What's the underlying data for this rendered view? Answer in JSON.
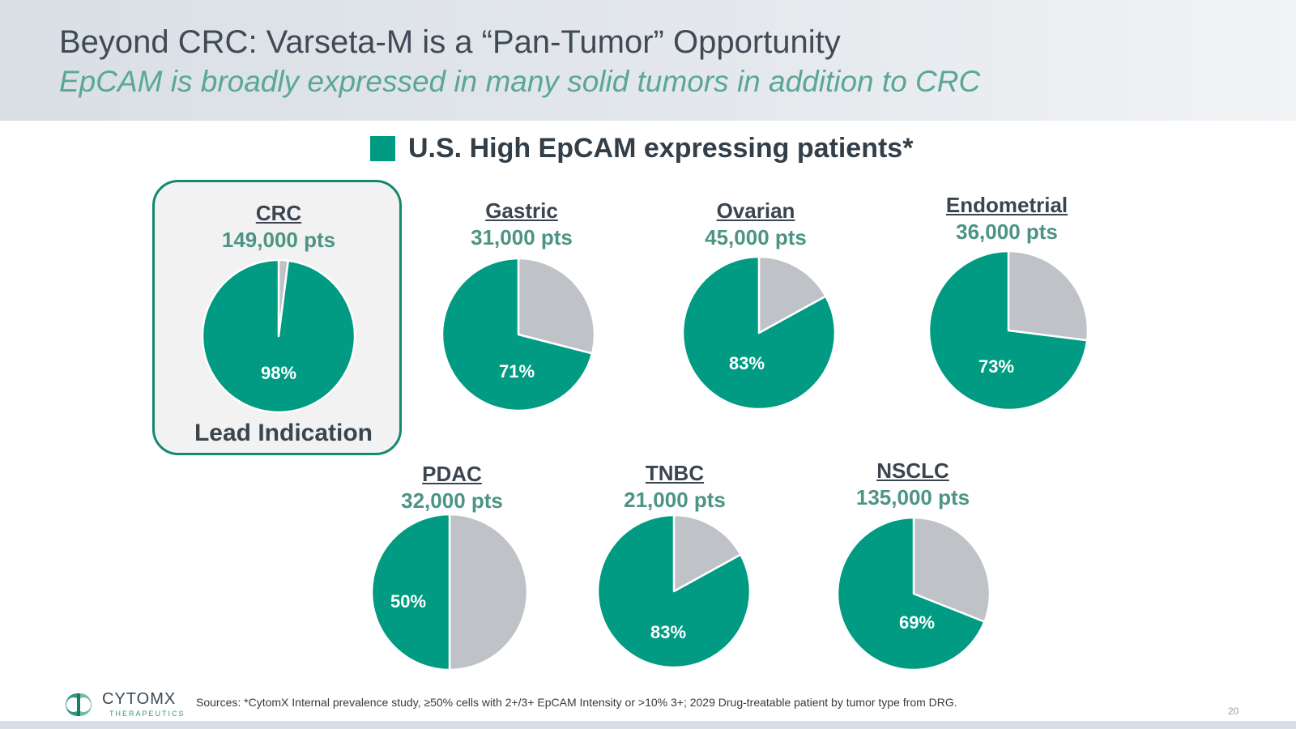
{
  "header": {
    "title": "Beyond CRC: Varseta-M is a “Pan-Tumor” Opportunity",
    "subtitle": "EpCAM is broadly expressed in many solid tumors in addition to CRC"
  },
  "colors": {
    "high_epcam": "#009b82",
    "other": "#bfc2c6",
    "header_title": "#3e4a56",
    "subtitle": "#5aa796"
  },
  "lead_box": {
    "label": "Lead Indication",
    "indication": "CRC"
  },
  "chart_data": {
    "type": "pie",
    "legend": {
      "label": "U.S. High EpCAM expressing patients*",
      "placement": "top"
    },
    "series_name": "U.S. High EpCAM expressing patients*",
    "pies": [
      {
        "name": "CRC",
        "pts_label": "149,000 pts",
        "patients": 149000,
        "high_epcam_pct": 98,
        "pct_label": "98%"
      },
      {
        "name": "Gastric",
        "pts_label": "31,000 pts",
        "patients": 31000,
        "high_epcam_pct": 71,
        "pct_label": "71%"
      },
      {
        "name": "Ovarian",
        "pts_label": "45,000 pts",
        "patients": 45000,
        "high_epcam_pct": 83,
        "pct_label": "83%"
      },
      {
        "name": "Endometrial",
        "pts_label": "36,000 pts",
        "patients": 36000,
        "high_epcam_pct": 73,
        "pct_label": "73%"
      },
      {
        "name": "PDAC",
        "pts_label": "32,000 pts",
        "patients": 32000,
        "high_epcam_pct": 50,
        "pct_label": "50%"
      },
      {
        "name": "TNBC",
        "pts_label": "21,000 pts",
        "patients": 21000,
        "high_epcam_pct": 83,
        "pct_label": "83%"
      },
      {
        "name": "NSCLC",
        "pts_label": "135,000 pts",
        "patients": 135000,
        "high_epcam_pct": 69,
        "pct_label": "69%"
      }
    ]
  },
  "footer": {
    "logo_word": "CYTOMX",
    "logo_sub": "THERAPEUTICS",
    "sources": "Sources: *CytomX Internal prevalence study, ≥50% cells with 2+/3+ EpCAM Intensity or >10% 3+; 2029 Drug-treatable patient by tumor type from DRG.",
    "page_number": "20"
  }
}
